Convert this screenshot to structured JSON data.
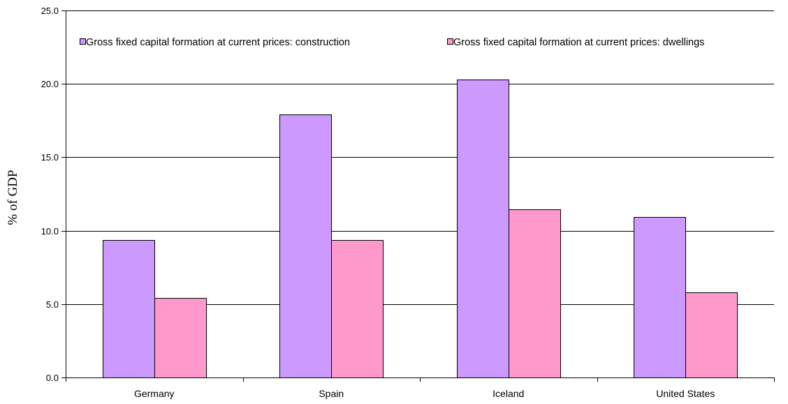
{
  "chart_data": {
    "type": "bar",
    "title": "",
    "xlabel": "",
    "ylabel": "% of GDP",
    "ylim": [
      0,
      25
    ],
    "yticks": [
      0,
      5,
      10,
      15,
      20,
      25
    ],
    "ytick_labels": [
      "0.0",
      "5.0",
      "10.0",
      "15.0",
      "20.0",
      "25.0"
    ],
    "grid": true,
    "legend_position": "top",
    "categories": [
      "Germany",
      "Spain",
      "Iceland",
      "United States"
    ],
    "series": [
      {
        "name": "Gross fixed capital formation at current prices: construction",
        "color": "#cc99ff",
        "values": [
          9.35,
          17.9,
          20.3,
          10.95
        ]
      },
      {
        "name": "Gross fixed capital formation at current prices: dwellings",
        "color": "#ff99cc",
        "values": [
          5.4,
          9.35,
          11.45,
          5.8
        ]
      }
    ]
  }
}
